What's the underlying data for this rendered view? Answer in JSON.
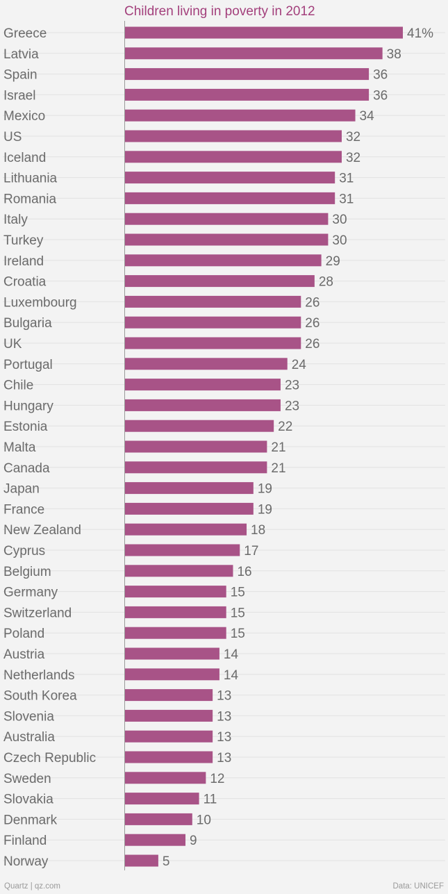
{
  "chart_data": {
    "type": "bar",
    "orientation": "horizontal",
    "title": "Children living in poverty in 2012",
    "value_suffix_first": "%",
    "categories": [
      "Greece",
      "Latvia",
      "Spain",
      "Israel",
      "Mexico",
      "US",
      "Iceland",
      "Lithuania",
      "Romania",
      "Italy",
      "Turkey",
      "Ireland",
      "Croatia",
      "Luxembourg",
      "Bulgaria",
      "UK",
      "Portugal",
      "Chile",
      "Hungary",
      "Estonia",
      "Malta",
      "Canada",
      "Japan",
      "France",
      "New Zealand",
      "Cyprus",
      "Belgium",
      "Germany",
      "Switzerland",
      "Poland",
      "Austria",
      "Netherlands",
      "South Korea",
      "Slovenia",
      "Australia",
      "Czech Republic",
      "Sweden",
      "Slovakia",
      "Denmark",
      "Finland",
      "Norway"
    ],
    "values": [
      41,
      38,
      36,
      36,
      34,
      32,
      32,
      31,
      31,
      30,
      30,
      29,
      28,
      26,
      26,
      26,
      24,
      23,
      23,
      22,
      21,
      21,
      19,
      19,
      18,
      17,
      16,
      15,
      15,
      15,
      14,
      14,
      13,
      13,
      13,
      13,
      12,
      11,
      10,
      9,
      5
    ],
    "xlim": [
      0,
      41
    ],
    "colors": {
      "bar": "#a85387",
      "title": "#a3407c",
      "label": "#6b6b6b",
      "grid": "#e2e2e2",
      "axis": "#9a9a9a"
    }
  },
  "footer": {
    "source_left": "Quartz | qz.com",
    "source_right": "Data: UNICEF"
  }
}
